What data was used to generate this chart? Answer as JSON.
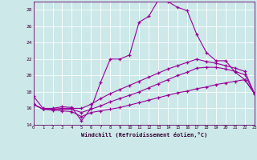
{
  "xlabel": "Windchill (Refroidissement éolien,°C)",
  "bg_color": "#cce8e8",
  "line_color": "#990099",
  "grid_color": "#ffffff",
  "xmin": 0,
  "xmax": 23,
  "ymin": 14,
  "ymax": 29,
  "yticks": [
    14,
    16,
    18,
    20,
    22,
    24,
    26,
    28
  ],
  "curve1_x": [
    0,
    1,
    2,
    3,
    4,
    5,
    6,
    7,
    8,
    9,
    10,
    11,
    12,
    13,
    14,
    15,
    16,
    17,
    18,
    19,
    20,
    21,
    22,
    23
  ],
  "curve1_y": [
    17.5,
    16.0,
    16.0,
    16.2,
    16.1,
    14.5,
    16.0,
    19.2,
    22.0,
    22.0,
    22.5,
    26.5,
    27.2,
    29.2,
    29.0,
    28.3,
    27.9,
    25.0,
    22.8,
    21.8,
    21.8,
    20.4,
    19.5,
    17.8
  ],
  "curve2_x": [
    0,
    1,
    2,
    3,
    4,
    5,
    6,
    7,
    8,
    9,
    10,
    11,
    12,
    13,
    14,
    15,
    16,
    17,
    18,
    19,
    20,
    21,
    22,
    23
  ],
  "curve2_y": [
    16.5,
    15.9,
    15.9,
    16.0,
    16.0,
    16.0,
    16.5,
    17.2,
    17.8,
    18.3,
    18.8,
    19.3,
    19.8,
    20.3,
    20.8,
    21.2,
    21.6,
    22.0,
    21.7,
    21.5,
    21.2,
    20.9,
    20.5,
    17.8
  ],
  "curve3_x": [
    0,
    1,
    2,
    3,
    4,
    5,
    6,
    7,
    8,
    9,
    10,
    11,
    12,
    13,
    14,
    15,
    16,
    17,
    18,
    19,
    20,
    21,
    22,
    23
  ],
  "curve3_y": [
    16.5,
    15.9,
    15.9,
    15.9,
    15.9,
    15.5,
    15.9,
    16.3,
    16.8,
    17.2,
    17.6,
    18.0,
    18.5,
    19.0,
    19.5,
    20.0,
    20.4,
    20.9,
    21.0,
    21.0,
    20.8,
    20.5,
    20.1,
    17.8
  ],
  "curve4_x": [
    0,
    1,
    2,
    3,
    4,
    5,
    6,
    7,
    8,
    9,
    10,
    11,
    12,
    13,
    14,
    15,
    16,
    17,
    18,
    19,
    20,
    21,
    22,
    23
  ],
  "curve4_y": [
    16.5,
    15.9,
    15.8,
    15.7,
    15.6,
    15.0,
    15.5,
    15.7,
    15.9,
    16.1,
    16.4,
    16.7,
    17.0,
    17.3,
    17.6,
    17.9,
    18.1,
    18.4,
    18.6,
    18.9,
    19.1,
    19.3,
    19.5,
    17.8
  ]
}
